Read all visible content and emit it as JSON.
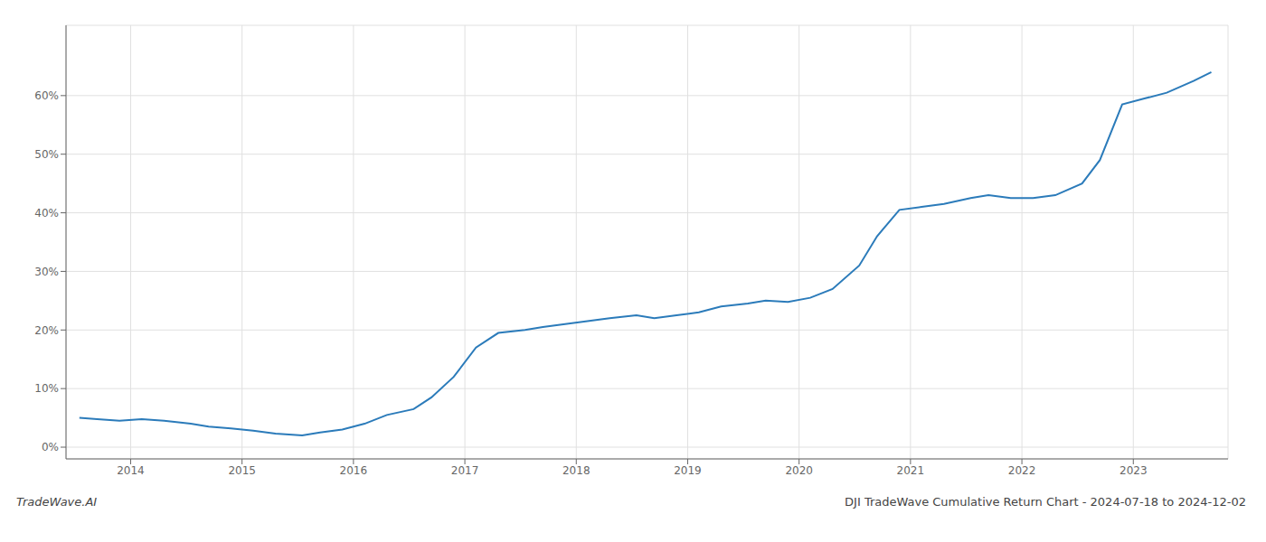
{
  "chart_data": {
    "type": "line",
    "title": "DJI TradeWave Cumulative Return Chart - 2024-07-18 to 2024-12-02",
    "annotations": [
      "TradeWave.AI"
    ],
    "x": [
      2013.54,
      2013.7,
      2013.9,
      2014.1,
      2014.3,
      2014.54,
      2014.7,
      2014.9,
      2015.1,
      2015.3,
      2015.54,
      2015.7,
      2015.9,
      2016.1,
      2016.3,
      2016.54,
      2016.7,
      2016.9,
      2017.1,
      2017.3,
      2017.54,
      2017.7,
      2017.9,
      2018.1,
      2018.3,
      2018.54,
      2018.7,
      2018.9,
      2019.1,
      2019.3,
      2019.54,
      2019.7,
      2019.9,
      2020.1,
      2020.3,
      2020.54,
      2020.7,
      2020.9,
      2021.1,
      2021.3,
      2021.54,
      2021.7,
      2021.9,
      2022.1,
      2022.3,
      2022.54,
      2022.7,
      2022.9,
      2023.1,
      2023.3,
      2023.54,
      2023.7
    ],
    "values": [
      5.0,
      4.8,
      4.5,
      4.8,
      4.5,
      4.0,
      3.5,
      3.2,
      2.8,
      2.3,
      2.0,
      2.5,
      3.0,
      4.0,
      5.5,
      6.5,
      8.5,
      12.0,
      17.0,
      19.5,
      20.0,
      20.5,
      21.0,
      21.5,
      22.0,
      22.5,
      22.0,
      22.5,
      23.0,
      24.0,
      24.5,
      25.0,
      24.8,
      25.5,
      27.0,
      31.0,
      36.0,
      40.5,
      41.0,
      41.5,
      42.5,
      43.0,
      42.5,
      42.5,
      43.0,
      45.0,
      49.0,
      58.5,
      59.5,
      60.5,
      62.5,
      64.0
    ],
    "color": "#2b7bba",
    "xlim": [
      2013.42,
      2023.85
    ],
    "ylim": [
      -2,
      72
    ],
    "xticks": [
      2014,
      2015,
      2016,
      2017,
      2018,
      2019,
      2020,
      2021,
      2022,
      2023
    ],
    "yticks": [
      {
        "value": 0,
        "label": "0%"
      },
      {
        "value": 10,
        "label": "10%"
      },
      {
        "value": 20,
        "label": "20%"
      },
      {
        "value": 30,
        "label": "30%"
      },
      {
        "value": 40,
        "label": "40%"
      },
      {
        "value": 50,
        "label": "50%"
      },
      {
        "value": 60,
        "label": "60%"
      }
    ],
    "grid": true
  }
}
